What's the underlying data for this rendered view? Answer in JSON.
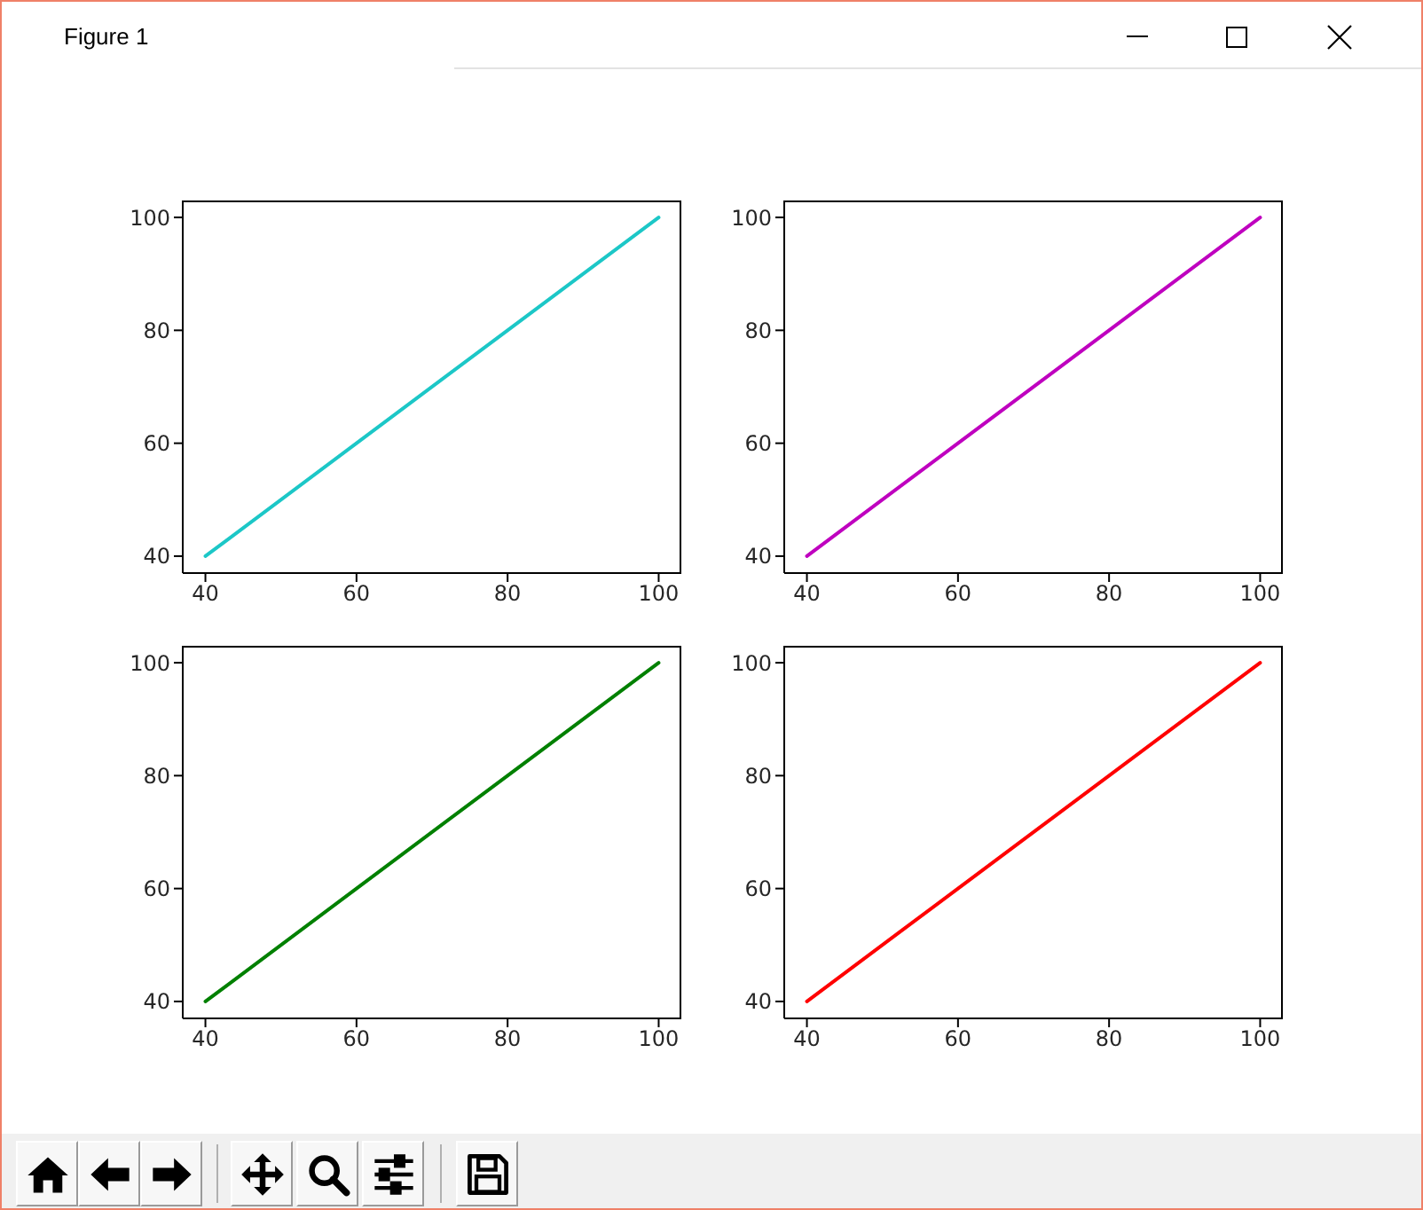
{
  "chart_data": [
    {
      "type": "other",
      "title": "Figure 1"
    },
    {
      "type": "line",
      "x": [
        40,
        60,
        80,
        100
      ],
      "values": [
        40,
        60,
        80,
        100
      ],
      "color": "#1cc7c7",
      "xlim": [
        37,
        103
      ],
      "ylim": [
        37,
        103
      ],
      "xticks": [
        40,
        60,
        80,
        100
      ],
      "yticks": [
        40,
        60,
        80,
        100
      ]
    },
    {
      "type": "line",
      "x": [
        40,
        60,
        80,
        100
      ],
      "values": [
        40,
        60,
        80,
        100
      ],
      "color": "#bf00bf",
      "xlim": [
        37,
        103
      ],
      "ylim": [
        37,
        103
      ],
      "xticks": [
        40,
        60,
        80,
        100
      ],
      "yticks": [
        40,
        60,
        80,
        100
      ]
    },
    {
      "type": "line",
      "x": [
        40,
        60,
        80,
        100
      ],
      "values": [
        40,
        60,
        80,
        100
      ],
      "color": "#008000",
      "xlim": [
        37,
        103
      ],
      "ylim": [
        37,
        103
      ],
      "xticks": [
        40,
        60,
        80,
        100
      ],
      "yticks": [
        40,
        60,
        80,
        100
      ]
    },
    {
      "type": "line",
      "x": [
        40,
        60,
        80,
        100
      ],
      "values": [
        40,
        60,
        80,
        100
      ],
      "color": "#ff0000",
      "xlim": [
        37,
        103
      ],
      "ylim": [
        37,
        103
      ],
      "xticks": [
        40,
        60,
        80,
        100
      ],
      "yticks": [
        40,
        60,
        80,
        100
      ]
    }
  ]
}
